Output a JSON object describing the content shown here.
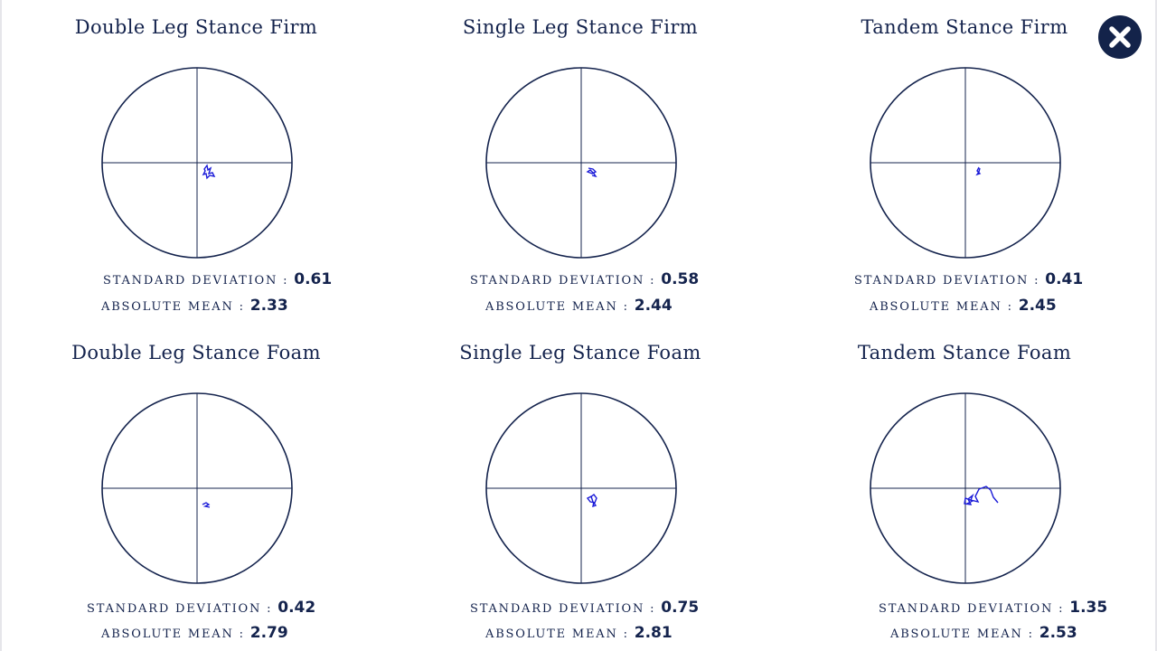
{
  "close": {
    "icon": "close-icon"
  },
  "labels": {
    "sd": "STANDARD DEVIATION :",
    "mean": "ABSOLUTE MEAN :"
  },
  "colors": {
    "ink": "#14234d",
    "trace": "#1a1ad8",
    "close_bg": "#13234a"
  },
  "tests": [
    {
      "title": "Double Leg Stance Firm",
      "sd": "0.61",
      "mean": "2.33"
    },
    {
      "title": "Single Leg Stance Firm",
      "sd": "0.58",
      "mean": "2.44"
    },
    {
      "title": "Tandem Stance Firm",
      "sd": "0.41",
      "mean": "2.45"
    },
    {
      "title": "Double Leg Stance Foam",
      "sd": "0.42",
      "mean": "2.79"
    },
    {
      "title": "Single Leg Stance Foam",
      "sd": "0.75",
      "mean": "2.81"
    },
    {
      "title": "Tandem Stance Foam",
      "sd": "1.35",
      "mean": "2.53"
    }
  ]
}
